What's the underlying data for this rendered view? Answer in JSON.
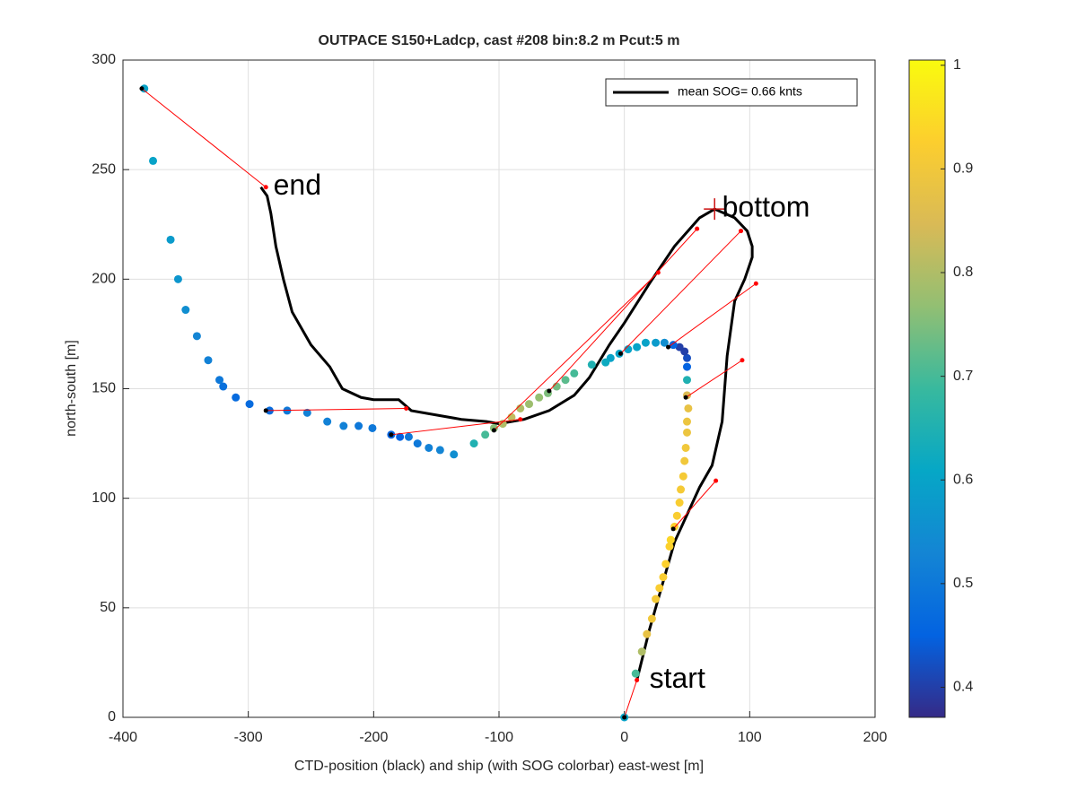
{
  "chart_data": {
    "type": "scatter",
    "title": "OUTPACE S150+Ladcp, cast #208 bin:8.2 m  Pcut:5 m",
    "xlabel": "CTD-position (black) and ship (with SOG colorbar) east-west [m]",
    "ylabel": "north-south [m]",
    "xlim": [
      -400,
      200
    ],
    "ylim": [
      0,
      300
    ],
    "xticks": [
      -400,
      -300,
      -200,
      -100,
      0,
      100,
      200
    ],
    "yticks": [
      0,
      50,
      100,
      150,
      200,
      250,
      300
    ],
    "grid": true,
    "ship": {
      "x": [
        0,
        9,
        14,
        18,
        22,
        25,
        28,
        31,
        33,
        36,
        37,
        40,
        42,
        44,
        45,
        47,
        48,
        49,
        50,
        50,
        51,
        50,
        50,
        50,
        50,
        48,
        44,
        39,
        32,
        25,
        17,
        10,
        3,
        -4,
        -11,
        -15,
        -26,
        -40,
        -47,
        -54,
        -61,
        -68,
        -76,
        -83,
        -90,
        -97,
        -104,
        -111,
        -120,
        -136,
        -147,
        -156,
        -165,
        -172,
        -179,
        -186,
        -201,
        -212,
        -224,
        -237,
        -253,
        -269,
        -283,
        -299,
        -310,
        -320,
        -323,
        -332,
        -341,
        -350,
        -356,
        -362,
        -376,
        -383
      ],
      "y": [
        0,
        20,
        30,
        38,
        45,
        54,
        59,
        64,
        70,
        78,
        81,
        87,
        92,
        98,
        104,
        110,
        117,
        123,
        130,
        135,
        141,
        147,
        154,
        160,
        164,
        167,
        169,
        170,
        171,
        171,
        171,
        169,
        168,
        166,
        164,
        162,
        161,
        157,
        154,
        151,
        148,
        146,
        143,
        141,
        137,
        134,
        132,
        129,
        125,
        120,
        122,
        123,
        125,
        128,
        128,
        129,
        132,
        133,
        133,
        135,
        139,
        140,
        140,
        143,
        146,
        151,
        154,
        163,
        174,
        186,
        200,
        218,
        254,
        287
      ],
      "values": [
        0.6,
        0.7,
        0.8,
        0.88,
        0.9,
        0.91,
        0.92,
        0.92,
        0.93,
        0.93,
        0.94,
        0.93,
        0.92,
        0.92,
        0.91,
        0.91,
        0.9,
        0.9,
        0.89,
        0.89,
        0.88,
        0.85,
        0.65,
        0.45,
        0.42,
        0.4,
        0.4,
        0.45,
        0.55,
        0.58,
        0.6,
        0.6,
        0.6,
        0.6,
        0.6,
        0.62,
        0.65,
        0.7,
        0.72,
        0.74,
        0.75,
        0.77,
        0.78,
        0.8,
        0.82,
        0.8,
        0.76,
        0.7,
        0.65,
        0.55,
        0.53,
        0.52,
        0.5,
        0.5,
        0.45,
        0.45,
        0.5,
        0.5,
        0.52,
        0.52,
        0.52,
        0.5,
        0.47,
        0.47,
        0.47,
        0.48,
        0.5,
        0.52,
        0.53,
        0.55,
        0.57,
        0.58,
        0.6,
        0.6
      ]
    },
    "series": [
      {
        "name": "mean SOG=  0.66 knts",
        "color": "#000000",
        "x": [
          10,
          20,
          30,
          40,
          48,
          60,
          70,
          78,
          82,
          88,
          96,
          102,
          102,
          98,
          88,
          72,
          60,
          40,
          20,
          0,
          -12,
          -28,
          -40,
          -60,
          -80,
          -100,
          -110,
          -130,
          -170,
          -180,
          -200,
          -210,
          -225,
          -235,
          -250,
          -265,
          -272,
          -278,
          -282,
          -285,
          -290
        ],
        "y": [
          17,
          40,
          60,
          80,
          90,
          105,
          115,
          135,
          165,
          190,
          200,
          210,
          215,
          222,
          228,
          232,
          228,
          215,
          198,
          180,
          170,
          155,
          147,
          140,
          136,
          134,
          135,
          136,
          140,
          145,
          145,
          146,
          150,
          160,
          170,
          185,
          200,
          215,
          230,
          238,
          242
        ]
      }
    ],
    "links": {
      "x1": [
        0,
        -385,
        -286,
        -186,
        -104,
        -60,
        -3,
        35,
        49,
        39
      ],
      "y1": [
        0,
        287,
        140,
        129,
        131,
        149,
        166,
        169,
        146,
        86
      ],
      "x2": [
        10,
        -286,
        -174,
        -83,
        27,
        58,
        93,
        105,
        94,
        73
      ],
      "y2": [
        17,
        242,
        141,
        136,
        203,
        223,
        222,
        198,
        163,
        108
      ],
      "color": "#ff0000"
    },
    "annotations": [
      {
        "text": "end",
        "x": -280,
        "y": 242
      },
      {
        "text": "start",
        "x": 20,
        "y": 17
      },
      {
        "text": "bottom",
        "x": 78,
        "y": 232
      }
    ],
    "bottom_marker": {
      "x": 72,
      "y": 232,
      "color": "#cc1111"
    },
    "colorbar": {
      "clim": [
        0.371,
        1.005
      ],
      "ticks": [
        0.4,
        0.5,
        0.6,
        0.7,
        0.8,
        0.9,
        1
      ],
      "colormap": [
        "#352a87",
        "#0363e1",
        "#1485d4",
        "#06a7c6",
        "#38b99e",
        "#92bf73",
        "#d9ba56",
        "#fcce2e",
        "#f9fb0e"
      ]
    }
  }
}
